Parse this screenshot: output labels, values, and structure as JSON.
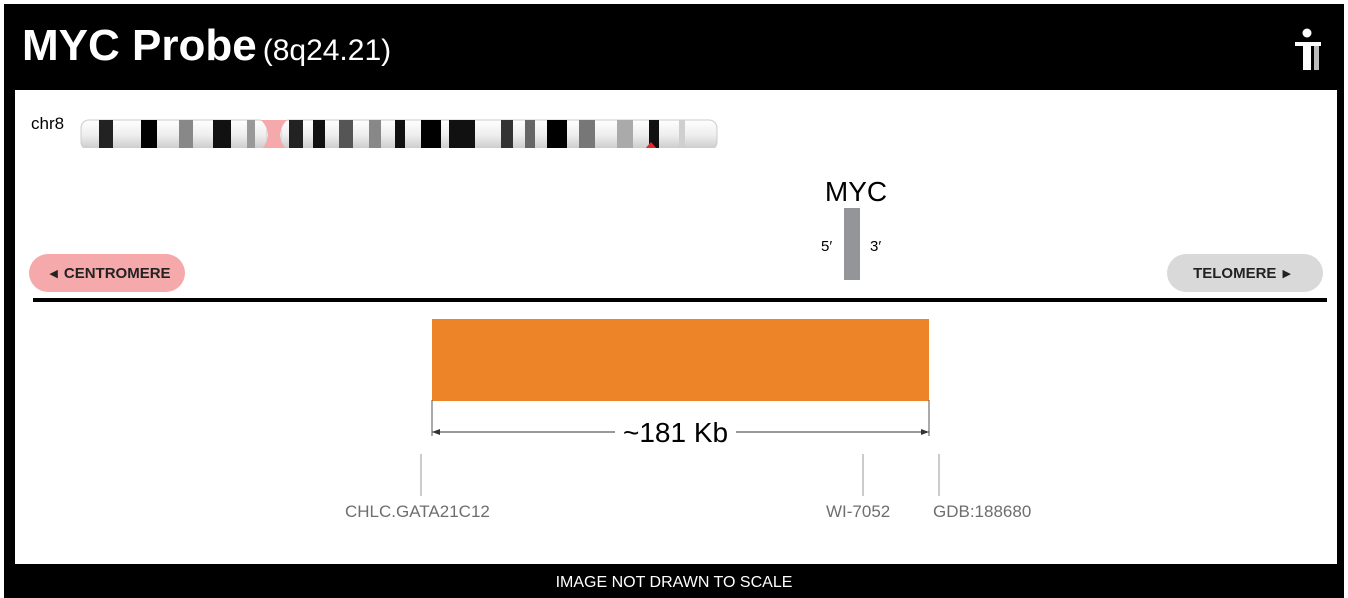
{
  "header": {
    "title": "MYC Probe",
    "locus": "(8q24.21)",
    "logo_icon": "person-logo-icon"
  },
  "ideogram": {
    "chromosome_label": "chr8",
    "centromere_color": "#f5a9ab",
    "marker_color": "#e8262a",
    "marker_icon": "red-triangle-icon"
  },
  "gene": {
    "name": "MYC",
    "five_prime": "5′",
    "three_prime": "3′",
    "color": "#939598"
  },
  "orientation": {
    "centromere_label": "CENTROMERE",
    "telomere_label": "TELOMERE",
    "centromere_color": "#f5a9ab",
    "telomere_color": "#d9d9d9"
  },
  "probe": {
    "color": "#ed8428",
    "size_label": "~181 Kb"
  },
  "markers": [
    {
      "label": "CHLC.GATA21C12"
    },
    {
      "label": "WI-7052"
    },
    {
      "label": "GDB:188680"
    }
  ],
  "footer": {
    "note": "IMAGE NOT DRAWN TO SCALE"
  }
}
